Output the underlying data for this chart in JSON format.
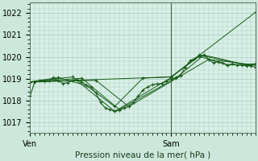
{
  "bg_color": "#cce8dc",
  "plot_bg_color": "#d8f0e8",
  "grid_color": "#a8ccb8",
  "line_color": "#1a5c1a",
  "marker_color": "#1a5c1a",
  "vline_color": "#446644",
  "xlabel": "Pression niveau de la mer( hPa )",
  "ylim": [
    1016.5,
    1022.5
  ],
  "yticks": [
    1017,
    1018,
    1019,
    1020,
    1021,
    1022
  ],
  "xlim": [
    0,
    48
  ],
  "ven_x": 0,
  "sam_x": 30,
  "vline_x": 30,
  "num_vert_grid": 48,
  "series": [
    [
      0,
      1018.2,
      1,
      1018.85,
      2,
      1018.9,
      3,
      1018.88,
      4,
      1018.9,
      5,
      1019.05,
      6,
      1018.9,
      7,
      1018.78,
      8,
      1018.82,
      9,
      1018.9,
      10,
      1018.95,
      11,
      1018.85,
      12,
      1018.7,
      13,
      1018.6,
      14,
      1018.35,
      15,
      1017.9,
      16,
      1017.65,
      17,
      1017.58,
      18,
      1017.5,
      19,
      1017.55,
      20,
      1017.65,
      21,
      1017.72,
      22,
      1017.9,
      23,
      1018.2,
      24,
      1018.48,
      25,
      1018.62,
      26,
      1018.72,
      27,
      1018.75,
      28,
      1018.78,
      29,
      1018.88,
      30,
      1018.98,
      31,
      1019.05,
      32,
      1019.15,
      33,
      1019.52,
      34,
      1019.82,
      35,
      1019.92,
      36,
      1020.02,
      37,
      1020.08,
      38,
      1019.88,
      39,
      1019.72,
      40,
      1019.78,
      41,
      1019.72,
      42,
      1019.62,
      43,
      1019.68,
      44,
      1019.62,
      45,
      1019.62,
      46,
      1019.58,
      47,
      1019.62,
      48,
      1019.68
    ],
    [
      0,
      1018.85,
      6,
      1019.05,
      12,
      1018.68,
      18,
      1017.72,
      24,
      1019.02,
      30,
      1019.08,
      36,
      1020.02,
      42,
      1019.62,
      48,
      1019.68
    ],
    [
      0,
      1018.85,
      9,
      1019.08,
      18,
      1017.5,
      30,
      1019.05,
      36,
      1020.08,
      46,
      1019.62,
      48,
      1019.68
    ],
    [
      0,
      1018.85,
      11,
      1019.02,
      19,
      1017.58,
      31,
      1019.02,
      37,
      1020.08,
      47,
      1019.58,
      48,
      1019.52
    ],
    [
      0,
      1018.85,
      14,
      1018.92,
      21,
      1017.72,
      32,
      1019.12,
      38,
      1019.88,
      48,
      1019.62
    ],
    [
      0,
      1018.85,
      30,
      1019.08,
      48,
      1022.05
    ]
  ]
}
